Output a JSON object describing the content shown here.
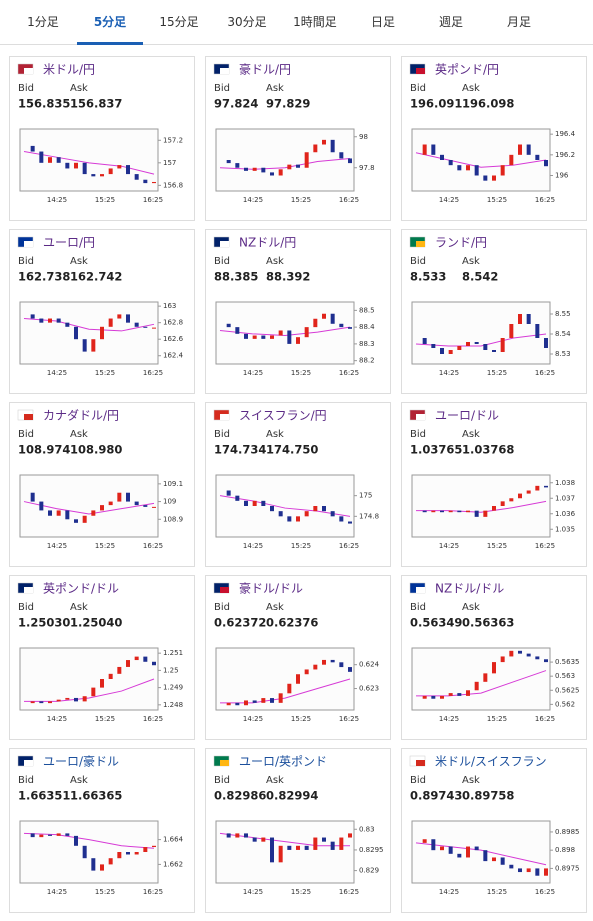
{
  "tabs": [
    "1分足",
    "5分足",
    "15分足",
    "30分足",
    "1時間足",
    "日足",
    "週足",
    "月足"
  ],
  "active_tab": 1,
  "labels": {
    "bid": "Bid",
    "ask": "Ask"
  },
  "times": [
    "14:25",
    "15:25",
    "16:25"
  ],
  "cards": [
    {
      "name": "米ドル/円",
      "bid": "156.835",
      "ask": "156.837",
      "chart": {
        "type": "candlestick",
        "ylim": [
          156.75,
          157.3
        ],
        "yticks": [
          156.8,
          157,
          157.2
        ],
        "closes": [
          157.15,
          157.1,
          157.0,
          157.05,
          157.0,
          156.95,
          157.0,
          156.9,
          156.88,
          156.9,
          156.95,
          156.98,
          156.9,
          156.85,
          156.82,
          156.83
        ],
        "ma": [
          157.1,
          157.05,
          157.0,
          156.97,
          156.9
        ]
      }
    },
    {
      "name": "豪ドル/円",
      "bid": "97.824",
      "ask": "97.829",
      "chart": {
        "type": "candlestick",
        "ylim": [
          97.65,
          98.05
        ],
        "yticks": [
          97.8,
          98
        ],
        "closes": [
          97.85,
          97.83,
          97.8,
          97.78,
          97.8,
          97.77,
          97.75,
          97.79,
          97.82,
          97.8,
          97.9,
          97.95,
          97.98,
          97.9,
          97.86,
          97.83
        ],
        "ma": [
          97.8,
          97.79,
          97.8,
          97.84,
          97.86
        ]
      }
    },
    {
      "name": "英ポンド/円",
      "bid": "196.091",
      "ask": "196.098",
      "chart": {
        "type": "candlestick",
        "ylim": [
          195.85,
          196.45
        ],
        "yticks": [
          196,
          196.2,
          196.4
        ],
        "closes": [
          196.2,
          196.3,
          196.2,
          196.15,
          196.1,
          196.05,
          196.1,
          196.0,
          195.95,
          196.0,
          196.1,
          196.2,
          196.3,
          196.2,
          196.15,
          196.09
        ],
        "ma": [
          196.22,
          196.15,
          196.08,
          196.1,
          196.15
        ]
      }
    },
    {
      "name": "ユーロ/円",
      "bid": "162.738",
      "ask": "162.742",
      "chart": {
        "type": "candlestick",
        "ylim": [
          162.3,
          163.05
        ],
        "yticks": [
          162.4,
          162.6,
          162.8,
          163
        ],
        "closes": [
          162.9,
          162.85,
          162.8,
          162.85,
          162.8,
          162.75,
          162.6,
          162.45,
          162.6,
          162.75,
          162.85,
          162.9,
          162.8,
          162.75,
          162.74,
          162.74
        ],
        "ma": [
          162.85,
          162.82,
          162.72,
          162.7,
          162.78
        ]
      }
    },
    {
      "name": "NZドル/円",
      "bid": "88.385",
      "ask": "88.392",
      "chart": {
        "type": "candlestick",
        "ylim": [
          88.18,
          88.55
        ],
        "yticks": [
          88.2,
          88.3,
          88.4,
          88.5
        ],
        "closes": [
          88.42,
          88.4,
          88.36,
          88.33,
          88.35,
          88.33,
          88.35,
          88.38,
          88.3,
          88.34,
          88.4,
          88.45,
          88.48,
          88.42,
          88.4,
          88.39
        ],
        "ma": [
          88.38,
          88.36,
          88.35,
          88.37,
          88.4
        ]
      }
    },
    {
      "name": "ランド/円",
      "bid": "8.533",
      "ask": "8.542",
      "chart": {
        "type": "candlestick",
        "ylim": [
          8.525,
          8.556
        ],
        "yticks": [
          8.53,
          8.54,
          8.55
        ],
        "closes": [
          8.538,
          8.535,
          8.533,
          8.53,
          8.532,
          8.534,
          8.536,
          8.535,
          8.532,
          8.531,
          8.538,
          8.545,
          8.55,
          8.545,
          8.538,
          8.533
        ],
        "ma": [
          8.535,
          8.534,
          8.534,
          8.538,
          8.54
        ]
      }
    },
    {
      "name": "カナダドル/円",
      "bid": "108.974",
      "ask": "108.980",
      "chart": {
        "type": "candlestick",
        "ylim": [
          108.8,
          109.15
        ],
        "yticks": [
          108.9,
          109,
          109.1
        ],
        "closes": [
          109.05,
          109.0,
          108.95,
          108.92,
          108.95,
          108.9,
          108.88,
          108.92,
          108.95,
          108.98,
          109.0,
          109.05,
          109.0,
          108.98,
          108.97,
          108.97
        ],
        "ma": [
          109.0,
          108.96,
          108.93,
          108.96,
          108.99
        ]
      }
    },
    {
      "name": "スイスフラン/円",
      "bid": "174.734",
      "ask": "174.750",
      "chart": {
        "type": "candlestick",
        "ylim": [
          174.6,
          175.2
        ],
        "yticks": [
          174.8,
          175
        ],
        "closes": [
          175.05,
          175.0,
          174.95,
          174.9,
          174.95,
          174.9,
          174.85,
          174.8,
          174.75,
          174.8,
          174.85,
          174.9,
          174.85,
          174.8,
          174.75,
          174.73
        ],
        "ma": [
          175.0,
          174.95,
          174.88,
          174.85,
          174.8
        ]
      }
    },
    {
      "name": "ユーロ/ドル",
      "bid": "1.03765",
      "ask": "1.03768",
      "chart": {
        "type": "candlestick",
        "ylim": [
          1.0345,
          1.0385
        ],
        "yticks": [
          1.035,
          1.036,
          1.037,
          1.038
        ],
        "closes": [
          1.0362,
          1.0361,
          1.0362,
          1.0361,
          1.0362,
          1.0361,
          1.0362,
          1.0358,
          1.0362,
          1.0365,
          1.0368,
          1.037,
          1.0373,
          1.0375,
          1.0378,
          1.0377
        ],
        "ma": [
          1.0362,
          1.0362,
          1.0361,
          1.0364,
          1.0368
        ]
      }
    },
    {
      "name": "英ポンド/ドル",
      "bid": "1.25030",
      "ask": "1.25040",
      "chart": {
        "type": "candlestick",
        "ylim": [
          1.2477,
          1.2513
        ],
        "yticks": [
          1.248,
          1.249,
          1.25,
          1.251
        ],
        "closes": [
          1.2481,
          1.2482,
          1.2481,
          1.2482,
          1.2483,
          1.2484,
          1.2482,
          1.2485,
          1.249,
          1.2495,
          1.2498,
          1.2502,
          1.2506,
          1.2508,
          1.2505,
          1.2503
        ],
        "ma": [
          1.2482,
          1.2482,
          1.2484,
          1.2488,
          1.2495
        ]
      }
    },
    {
      "name": "豪ドル/ドル",
      "bid": "0.62372",
      "ask": "0.62376",
      "chart": {
        "type": "candlestick",
        "ylim": [
          0.6221,
          0.6247
        ],
        "yticks": [
          0.623,
          0.624
        ],
        "closes": [
          0.6223,
          0.6224,
          0.6223,
          0.6225,
          0.6224,
          0.6226,
          0.6224,
          0.6228,
          0.6232,
          0.6236,
          0.6238,
          0.624,
          0.6242,
          0.6241,
          0.6239,
          0.6237
        ],
        "ma": [
          0.6224,
          0.6224,
          0.6226,
          0.623,
          0.6234
        ]
      }
    },
    {
      "name": "NZドル/ドル",
      "bid": "0.56349",
      "ask": "0.56363",
      "chart": {
        "type": "candlestick",
        "ylim": [
          0.5618,
          0.564
        ],
        "yticks": [
          0.562,
          0.5625,
          0.563,
          0.5635
        ],
        "closes": [
          0.5622,
          0.5623,
          0.5622,
          0.5623,
          0.5624,
          0.5623,
          0.5625,
          0.5628,
          0.5631,
          0.5635,
          0.5637,
          0.5639,
          0.5638,
          0.5637,
          0.5636,
          0.5635
        ],
        "ma": [
          0.5623,
          0.5623,
          0.5624,
          0.5628,
          0.5632
        ]
      }
    },
    {
      "name": "ユーロ/豪ドル",
      "bid": "1.66351",
      "ask": "1.66365",
      "chart": {
        "type": "candlestick",
        "ylim": [
          1.6605,
          1.6655
        ],
        "yticks": [
          1.662,
          1.664
        ],
        "closes": [
          1.6645,
          1.6642,
          1.6644,
          1.6643,
          1.6645,
          1.6643,
          1.6635,
          1.6625,
          1.6615,
          1.662,
          1.6625,
          1.663,
          1.6628,
          1.663,
          1.6634,
          1.6635
        ],
        "ma": [
          1.6645,
          1.6644,
          1.664,
          1.6635,
          1.6633
        ]
      }
    },
    {
      "name": "ユーロ/英ポンド",
      "bid": "0.82986",
      "ask": "0.82994",
      "chart": {
        "type": "candlestick",
        "ylim": [
          0.8287,
          0.8302
        ],
        "yticks": [
          0.829,
          0.8295,
          0.83
        ],
        "closes": [
          0.8299,
          0.8298,
          0.8299,
          0.8298,
          0.8297,
          0.8298,
          0.8292,
          0.8296,
          0.8295,
          0.8296,
          0.8295,
          0.8298,
          0.8297,
          0.8295,
          0.8298,
          0.8299
        ],
        "ma": [
          0.8299,
          0.8298,
          0.8297,
          0.8296,
          0.8296
        ]
      }
    },
    {
      "name": "米ドル/スイスフラン",
      "bid": "0.89743",
      "ask": "0.89758",
      "chart": {
        "type": "candlestick",
        "ylim": [
          0.8971,
          0.8988
        ],
        "yticks": [
          0.8975,
          0.898,
          0.8985
        ],
        "closes": [
          0.8982,
          0.8983,
          0.898,
          0.8981,
          0.8979,
          0.8978,
          0.8981,
          0.898,
          0.8977,
          0.8978,
          0.8976,
          0.8975,
          0.8974,
          0.8975,
          0.8973,
          0.8975
        ],
        "ma": [
          0.8982,
          0.8981,
          0.898,
          0.8978,
          0.8976
        ]
      }
    }
  ]
}
